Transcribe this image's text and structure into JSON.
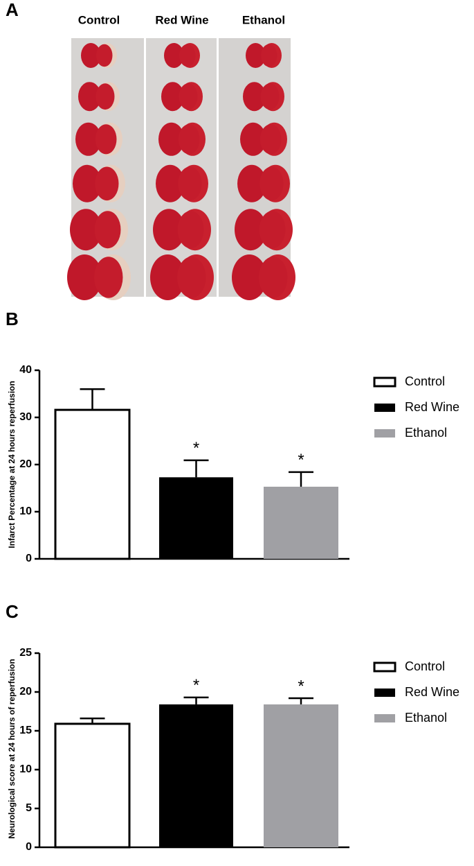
{
  "photo": {
    "label": "A",
    "columns": [
      "Control",
      "Red Wine",
      "Ethanol"
    ]
  },
  "chart_data": [
    {
      "type": "bar",
      "panel": "B",
      "ylabel": "Infarct Percentage at 24 hours reperfusion",
      "ylim": [
        0,
        40
      ],
      "yticks": [
        0,
        10,
        20,
        30,
        40
      ],
      "series": [
        {
          "name": "Control",
          "color": "#ffffff",
          "values": [
            31.6
          ],
          "errors": [
            4.4
          ]
        },
        {
          "name": "Red Wine",
          "color": "#000000",
          "values": [
            17.3
          ],
          "errors": [
            3.6
          ],
          "annotation": "*"
        },
        {
          "name": "Ethanol",
          "color": "#a0a0a4",
          "values": [
            15.3
          ],
          "errors": [
            3.1
          ],
          "annotation": "*"
        }
      ]
    },
    {
      "type": "bar",
      "panel": "C",
      "ylabel": "Neurological score at 24 hours of reperfusion",
      "ylim": [
        0,
        25
      ],
      "yticks": [
        0,
        5,
        10,
        15,
        20,
        25
      ],
      "series": [
        {
          "name": "Control",
          "color": "#ffffff",
          "values": [
            15.9
          ],
          "errors": [
            0.7
          ]
        },
        {
          "name": "Red Wine",
          "color": "#000000",
          "values": [
            18.4
          ],
          "errors": [
            0.9
          ],
          "annotation": "*"
        },
        {
          "name": "Ethanol",
          "color": "#a0a0a4",
          "values": [
            18.4
          ],
          "errors": [
            0.8
          ],
          "annotation": "*"
        }
      ]
    }
  ]
}
